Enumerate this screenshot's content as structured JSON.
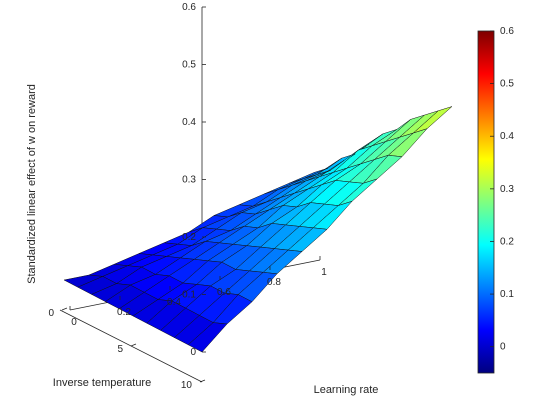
{
  "chart_data": {
    "type": "surface",
    "title": "",
    "xlabel": "Learning rate",
    "ylabel": "Inverse temperature",
    "zlabel": "Standardized linear effect of w on reward",
    "x_ticks": [
      "0",
      "0.2",
      "0.4",
      "0.6",
      "0.8",
      "1"
    ],
    "y_ticks": [
      "0",
      "5",
      "10"
    ],
    "z_ticks": [
      "0",
      "0.1",
      "0.2",
      "0.3",
      "0.4",
      "0.5",
      "0.6"
    ],
    "xlim": [
      0,
      1
    ],
    "ylim": [
      0,
      10
    ],
    "zlim": [
      0,
      0.6
    ],
    "x": [
      0,
      0.1,
      0.2,
      0.3,
      0.4,
      0.5,
      0.6,
      0.7,
      0.8,
      0.9,
      1.0
    ],
    "y": [
      0,
      1,
      2,
      3,
      4,
      5,
      6,
      7,
      8,
      9,
      10
    ],
    "z": [
      [
        0.0,
        0.0,
        0.01,
        0.02,
        0.03,
        0.04,
        0.06,
        0.07,
        0.08,
        0.09,
        0.1
      ],
      [
        0.0,
        0.01,
        0.02,
        0.03,
        0.04,
        0.06,
        0.07,
        0.08,
        0.1,
        0.11,
        0.12
      ],
      [
        0.0,
        0.01,
        0.03,
        0.04,
        0.05,
        0.07,
        0.09,
        0.1,
        0.12,
        0.13,
        0.15
      ],
      [
        0.0,
        0.02,
        0.03,
        0.05,
        0.07,
        0.08,
        0.1,
        0.12,
        0.14,
        0.15,
        0.17
      ],
      [
        0.0,
        0.02,
        0.04,
        0.06,
        0.08,
        0.1,
        0.12,
        0.14,
        0.16,
        0.18,
        0.2
      ],
      [
        0.0,
        0.02,
        0.04,
        0.07,
        0.09,
        0.11,
        0.14,
        0.16,
        0.18,
        0.21,
        0.23
      ],
      [
        0.0,
        0.03,
        0.05,
        0.08,
        0.1,
        0.13,
        0.15,
        0.18,
        0.2,
        0.23,
        0.25
      ],
      [
        0.0,
        0.03,
        0.06,
        0.08,
        0.11,
        0.14,
        0.17,
        0.2,
        0.22,
        0.25,
        0.28
      ],
      [
        0.0,
        0.03,
        0.06,
        0.09,
        0.12,
        0.15,
        0.18,
        0.21,
        0.24,
        0.27,
        0.3
      ],
      [
        0.0,
        0.03,
        0.07,
        0.1,
        0.13,
        0.16,
        0.19,
        0.22,
        0.26,
        0.29,
        0.32
      ],
      [
        0.0,
        0.04,
        0.07,
        0.11,
        0.14,
        0.17,
        0.21,
        0.24,
        0.27,
        0.31,
        0.34
      ]
    ],
    "colormap": "jet",
    "colorbar": {
      "range": [
        -0.05,
        0.6
      ],
      "ticks": [
        "0",
        "0.1",
        "0.2",
        "0.3",
        "0.4",
        "0.5",
        "0.6"
      ]
    },
    "grid": false
  }
}
